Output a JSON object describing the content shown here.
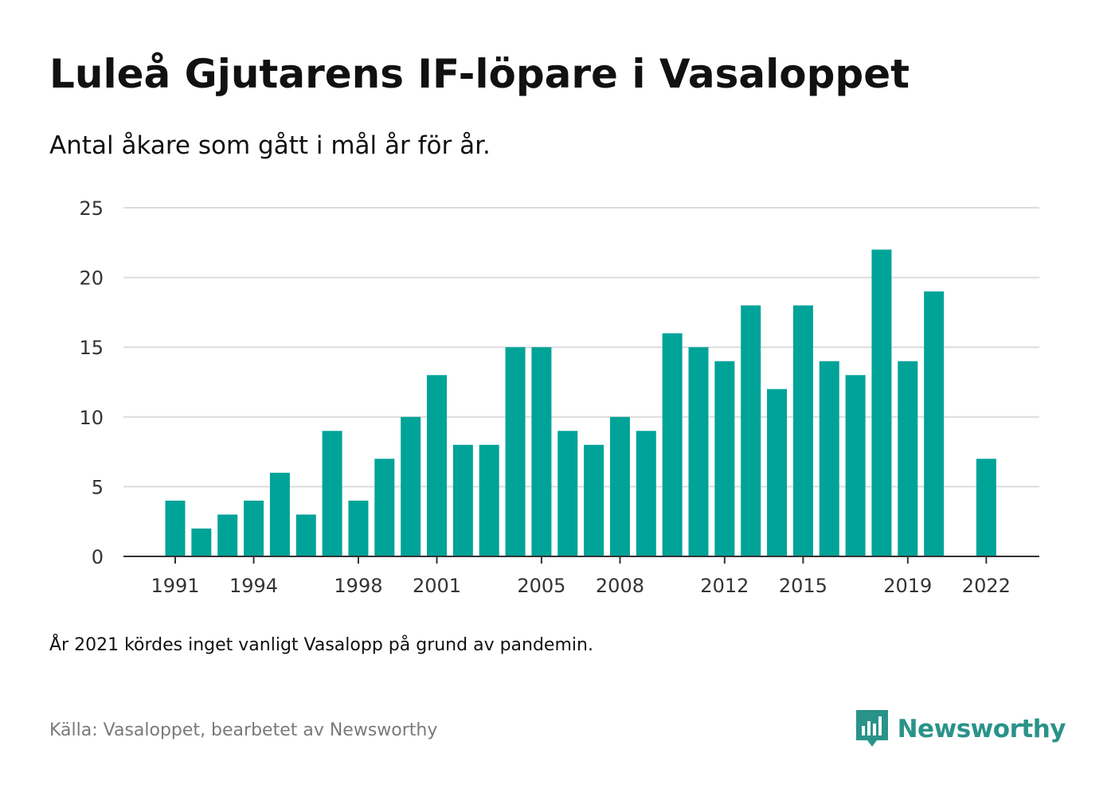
{
  "title": "Luleå Gjutarens IF-löpare i Vasaloppet",
  "subtitle": "Antal åkare som gått i mål år för år.",
  "note": "År 2021 kördes inget vanligt Vasalopp på grund av pandemin.",
  "source": "Källa: Vasaloppet, bearbetet av Newsworthy",
  "brand": {
    "name": "Newsworthy",
    "icon": "newsworthy-logo-icon",
    "color": "#2a9389"
  },
  "chart_data": {
    "type": "bar",
    "title": "Luleå Gjutarens IF-löpare i Vasaloppet",
    "subtitle": "Antal åkare som gått i mål år för år.",
    "xlabel": "",
    "ylabel": "",
    "categories": [
      1991,
      1992,
      1993,
      1994,
      1995,
      1996,
      1997,
      1998,
      1999,
      2000,
      2001,
      2002,
      2003,
      2004,
      2005,
      2006,
      2007,
      2008,
      2009,
      2010,
      2011,
      2012,
      2013,
      2014,
      2015,
      2016,
      2017,
      2018,
      2019,
      2020,
      2021,
      2022
    ],
    "values": [
      4,
      2,
      3,
      4,
      6,
      3,
      9,
      4,
      7,
      10,
      13,
      8,
      8,
      15,
      15,
      9,
      8,
      10,
      9,
      16,
      15,
      14,
      18,
      12,
      18,
      14,
      13,
      22,
      14,
      19,
      null,
      7
    ],
    "x_tick_labels": [
      "1991",
      "1994",
      "1998",
      "2001",
      "2005",
      "2008",
      "2012",
      "2015",
      "2019",
      "2022"
    ],
    "y_ticks": [
      0,
      5,
      10,
      15,
      20,
      25
    ],
    "ylim": [
      0,
      25
    ],
    "grid": true,
    "bar_color": "#00a398",
    "legend": "none"
  }
}
